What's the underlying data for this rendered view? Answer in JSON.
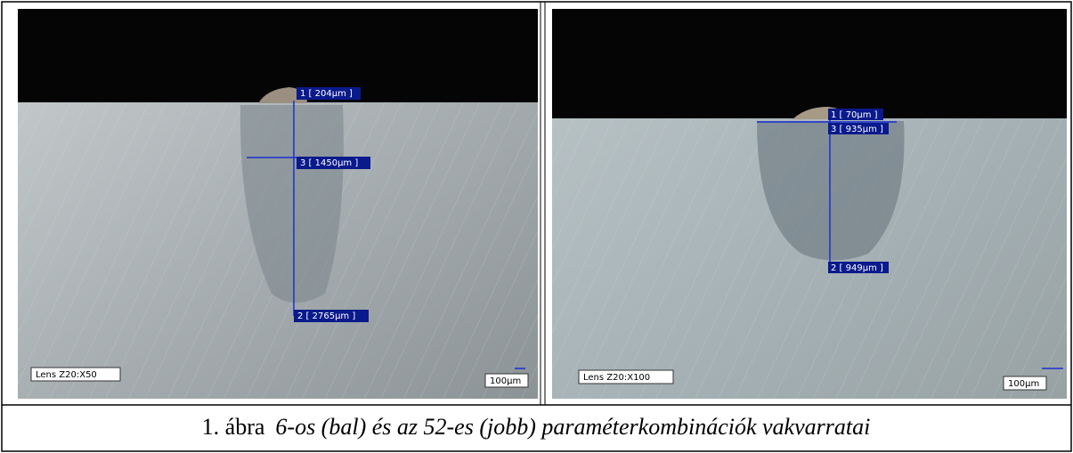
{
  "figure": {
    "panels": [
      {
        "lens": "Lens Z20:X50",
        "scale": "100µm",
        "measurements": [
          "1 [ 204µm ]",
          "3 [ 1450µm ]",
          "2 [ 2765µm ]"
        ]
      },
      {
        "lens": "Lens Z20:X100",
        "scale": "100µm",
        "measurements": [
          "1 [ 70µm ]",
          "3 [ 935µm ]",
          "2 [ 949µm ]"
        ]
      }
    ],
    "caption": {
      "number": "1. ábra",
      "text": "6-os (bal) és az 52-es (jobb) paraméterkombinációk vakvarratai"
    }
  }
}
